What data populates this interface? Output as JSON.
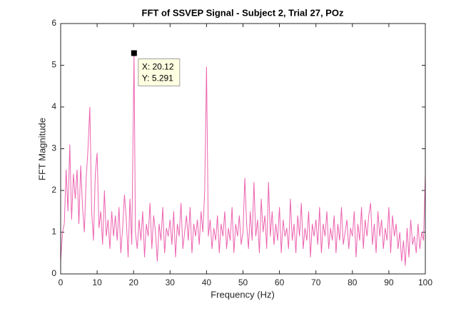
{
  "chart_data": {
    "type": "line",
    "title": "FFT of SSVEP Signal - Subject 2, Trial 27, POz",
    "x_label": "Frequency (Hz)",
    "y_label": "FFT Magnitude",
    "color": "#ec63b0",
    "x": [
      0,
      0.5,
      1,
      1.5,
      2,
      2.5,
      3,
      3.5,
      4,
      4.5,
      5,
      5.5,
      6,
      6.5,
      7,
      7.5,
      8,
      8.5,
      9,
      9.5,
      10,
      10.5,
      11,
      11.5,
      12,
      12.5,
      13,
      13.5,
      14,
      14.5,
      15,
      15.5,
      16,
      16.5,
      17,
      17.5,
      18,
      18.5,
      19,
      19.5,
      20.12,
      20.5,
      21,
      21.5,
      22,
      22.5,
      23,
      23.5,
      24,
      24.5,
      25,
      25.5,
      26,
      26.5,
      27,
      27.5,
      28,
      28.5,
      29,
      29.5,
      30,
      30.5,
      31,
      31.5,
      32,
      32.5,
      33,
      33.5,
      34,
      34.5,
      35,
      35.5,
      36,
      36.5,
      37,
      37.5,
      38,
      38.5,
      39,
      39.5,
      40,
      40.5,
      41,
      41.5,
      42,
      42.5,
      43,
      43.5,
      44,
      44.5,
      45,
      45.5,
      46,
      46.5,
      47,
      47.5,
      48,
      48.5,
      49,
      49.5,
      50,
      50.5,
      51,
      51.5,
      52,
      52.5,
      53,
      53.5,
      54,
      54.5,
      55,
      55.5,
      56,
      56.5,
      57,
      57.5,
      58,
      58.5,
      59,
      59.5,
      60,
      60.5,
      61,
      61.5,
      62,
      62.5,
      63,
      63.5,
      64,
      64.5,
      65,
      65.5,
      66,
      66.5,
      67,
      67.5,
      68,
      68.5,
      69,
      69.5,
      70,
      70.5,
      71,
      71.5,
      72,
      72.5,
      73,
      73.5,
      74,
      74.5,
      75,
      75.5,
      76,
      76.5,
      77,
      77.5,
      78,
      78.5,
      79,
      79.5,
      80,
      80.5,
      81,
      81.5,
      82,
      82.5,
      83,
      83.5,
      84,
      84.5,
      85,
      85.5,
      86,
      86.5,
      87,
      87.5,
      88,
      88.5,
      89,
      89.5,
      90,
      90.5,
      91,
      91.5,
      92,
      92.5,
      93,
      93.5,
      94,
      94.5,
      95,
      95.5,
      96,
      96.5,
      97,
      97.5,
      98,
      98.5,
      99,
      99.5,
      100
    ],
    "values": [
      0.3,
      1.0,
      1.2,
      2.5,
      1.5,
      3.1,
      1.3,
      2.4,
      1.8,
      2.5,
      1.2,
      2.6,
      1.6,
      1.0,
      2.3,
      3.0,
      4.0,
      1.5,
      0.8,
      2.4,
      2.9,
      1.1,
      1.5,
      0.7,
      2.0,
      0.9,
      1.3,
      0.6,
      1.5,
      0.9,
      1.4,
      0.8,
      1.6,
      0.5,
      1.1,
      1.9,
      1.3,
      0.4,
      1.8,
      0.7,
      5.291,
      1.0,
      0.6,
      1.3,
      0.8,
      1.5,
      0.4,
      1.2,
      0.9,
      1.7,
      0.6,
      1.4,
      1.0,
      0.3,
      1.2,
      0.8,
      1.6,
      0.5,
      1.1,
      0.9,
      1.3,
      0.7,
      1.5,
      0.4,
      1.2,
      0.9,
      1.7,
      0.6,
      1.0,
      1.4,
      0.8,
      1.6,
      0.5,
      1.2,
      0.9,
      1.3,
      0.7,
      1.5,
      1.0,
      2.0,
      4.97,
      0.9,
      1.3,
      0.6,
      1.1,
      0.8,
      1.4,
      0.5,
      1.2,
      0.9,
      1.5,
      0.6,
      1.1,
      0.8,
      1.6,
      0.5,
      1.2,
      0.9,
      1.4,
      0.7,
      1.0,
      2.3,
      1.2,
      0.6,
      1.5,
      0.8,
      2.2,
      0.9,
      1.3,
      0.5,
      1.8,
      1.0,
      1.4,
      0.6,
      2.2,
      0.9,
      1.5,
      0.7,
      1.2,
      0.8,
      1.6,
      0.5,
      1.3,
      0.9,
      1.1,
      0.6,
      1.8,
      0.8,
      1.2,
      0.5,
      1.4,
      0.9,
      1.7,
      0.6,
      1.1,
      0.8,
      1.5,
      0.4,
      1.2,
      0.9,
      1.3,
      0.7,
      1.6,
      0.5,
      1.2,
      0.9,
      1.5,
      0.6,
      1.1,
      0.8,
      1.4,
      0.5,
      1.2,
      0.8,
      1.6,
      0.7,
      1.0,
      1.3,
      0.6,
      1.1,
      0.9,
      1.5,
      0.4,
      1.2,
      0.8,
      1.6,
      0.6,
      1.3,
      0.9,
      1.4,
      1.7,
      0.7,
      1.2,
      0.5,
      1.5,
      0.9,
      1.3,
      0.6,
      1.1,
      0.8,
      1.6,
      0.5,
      1.4,
      0.9,
      1.2,
      0.6,
      1.0,
      0.3,
      0.8,
      0.2,
      1.1,
      0.4,
      1.3,
      0.7,
      0.9,
      0.5,
      1.2,
      0.6,
      1.0,
      0.8,
      2.4
    ],
    "xlim": [
      0,
      100
    ],
    "xticks": [
      0,
      10,
      20,
      30,
      40,
      50,
      60,
      70,
      80,
      90,
      100
    ],
    "ylim": [
      0,
      6
    ],
    "yticks": [
      0,
      1,
      2,
      3,
      4,
      5,
      6
    ],
    "annotation": {
      "x": 20.12,
      "y": 5.291,
      "x_label": "X: 20.12",
      "y_label": "Y: 5.291"
    }
  }
}
